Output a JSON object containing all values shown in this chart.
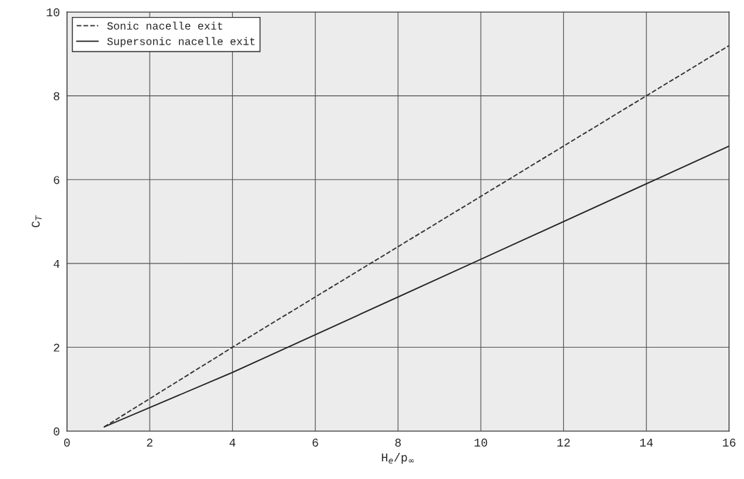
{
  "chart_data": {
    "type": "line",
    "xlabel": "H$_{e}$/p$_{∞}$",
    "ylabel": "C$_{T}$",
    "xlim": [
      0,
      16
    ],
    "ylim": [
      0,
      10
    ],
    "xticks": [
      0,
      2,
      4,
      6,
      8,
      10,
      12,
      14,
      16
    ],
    "yticks": [
      0,
      2,
      4,
      6,
      8,
      10
    ],
    "grid": true,
    "legend": "top left",
    "marker": "none",
    "series": [
      {
        "name": "Sonic nacelle exit",
        "color": "#333333",
        "line_style": "dashed",
        "x": [
          0.9,
          4,
          8,
          12,
          16
        ],
        "values": [
          0.1,
          2,
          4.4,
          6.8,
          9.2
        ]
      },
      {
        "name": "Supersonic nacelle exit",
        "color": "#222222",
        "line_style": "solid",
        "x": [
          0.9,
          4,
          8,
          10,
          14,
          16
        ],
        "values": [
          0.1,
          1.4,
          3.2,
          4.1,
          5.9,
          6.8
        ]
      }
    ]
  }
}
